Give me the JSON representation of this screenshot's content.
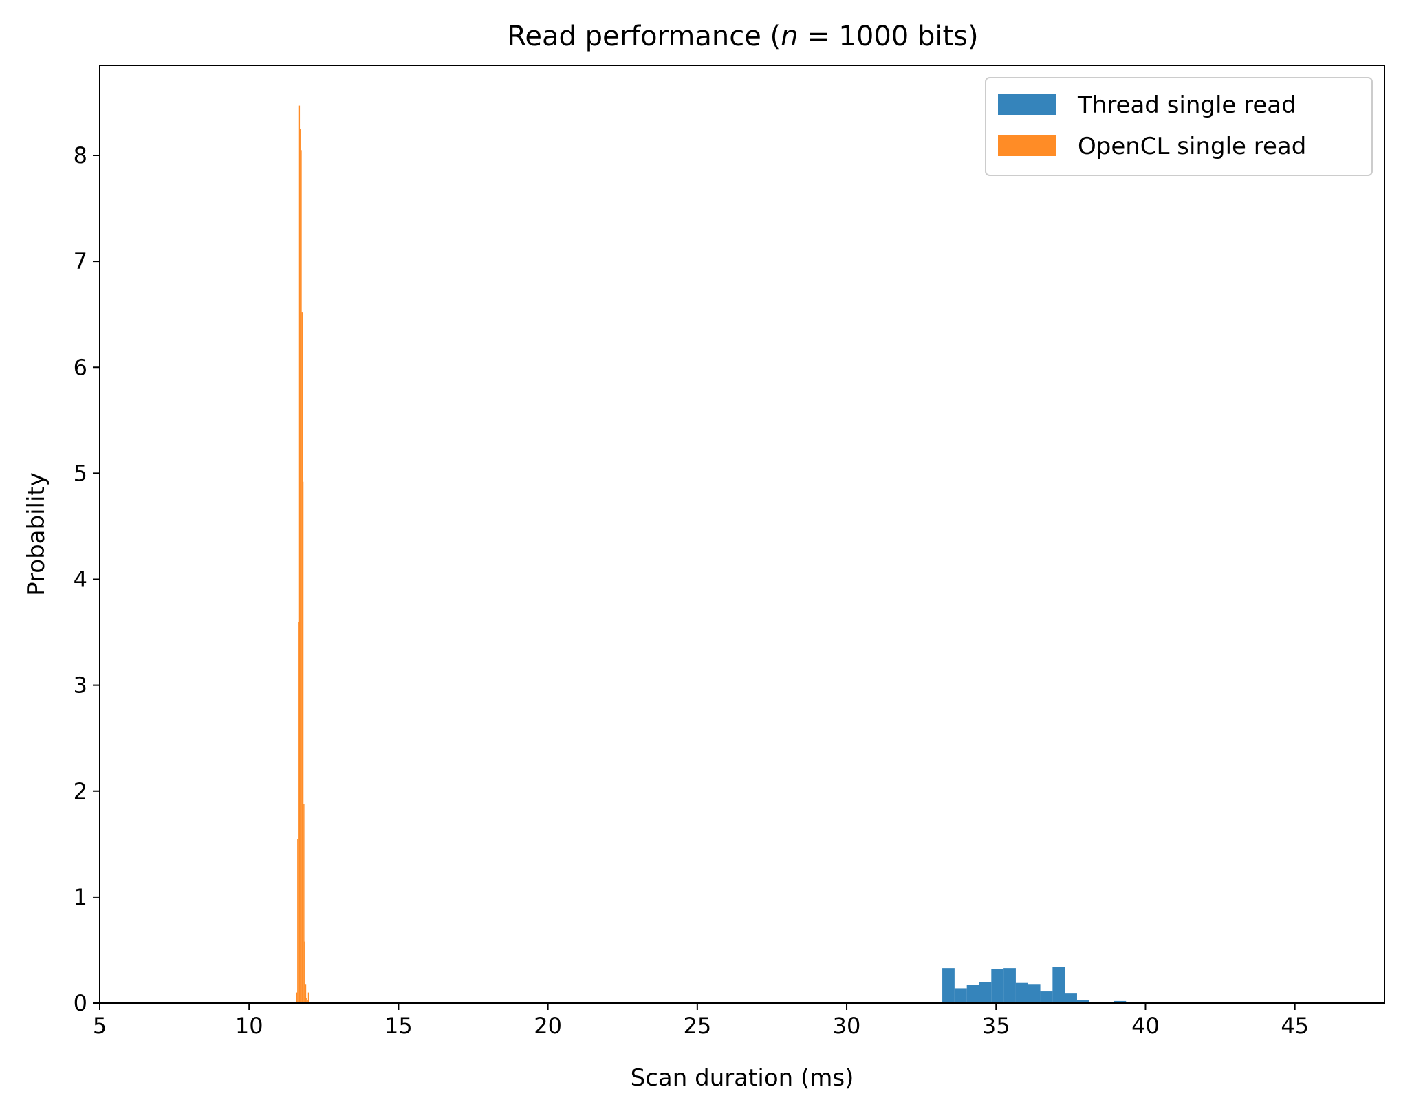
{
  "chart_data": {
    "type": "bar",
    "title": "Read performance (n = 1000 bits)",
    "xlabel": "Scan duration (ms)",
    "ylabel": "Probability",
    "xlim": [
      5,
      48
    ],
    "ylim": [
      0,
      8.85
    ],
    "xticks": [
      5,
      10,
      15,
      20,
      25,
      30,
      35,
      40,
      45
    ],
    "yticks": [
      0,
      1,
      2,
      3,
      4,
      5,
      6,
      7,
      8
    ],
    "grid": false,
    "legend_position": "top-right",
    "series": [
      {
        "name": "Thread single read",
        "color": "#1f77b4",
        "bin_width": 0.41,
        "bins": [
          {
            "x": 33.2,
            "y": 0.33
          },
          {
            "x": 33.61,
            "y": 0.14
          },
          {
            "x": 34.02,
            "y": 0.17
          },
          {
            "x": 34.43,
            "y": 0.2
          },
          {
            "x": 34.84,
            "y": 0.32
          },
          {
            "x": 35.25,
            "y": 0.33
          },
          {
            "x": 35.66,
            "y": 0.19
          },
          {
            "x": 36.07,
            "y": 0.18
          },
          {
            "x": 36.48,
            "y": 0.11
          },
          {
            "x": 36.89,
            "y": 0.34
          },
          {
            "x": 37.3,
            "y": 0.09
          },
          {
            "x": 37.71,
            "y": 0.03
          },
          {
            "x": 38.12,
            "y": 0.01
          },
          {
            "x": 38.53,
            "y": 0.01
          },
          {
            "x": 38.94,
            "y": 0.02
          }
        ]
      },
      {
        "name": "OpenCL single read",
        "color": "#ff7f0e",
        "bin_width": 0.03,
        "bins": [
          {
            "x": 11.58,
            "y": 0.1
          },
          {
            "x": 11.61,
            "y": 1.55
          },
          {
            "x": 11.64,
            "y": 3.6
          },
          {
            "x": 11.67,
            "y": 8.47
          },
          {
            "x": 11.7,
            "y": 8.25
          },
          {
            "x": 11.73,
            "y": 8.05
          },
          {
            "x": 11.76,
            "y": 6.52
          },
          {
            "x": 11.79,
            "y": 4.92
          },
          {
            "x": 11.82,
            "y": 1.88
          },
          {
            "x": 11.85,
            "y": 0.58
          },
          {
            "x": 11.88,
            "y": 0.18
          },
          {
            "x": 11.91,
            "y": 0.05
          },
          {
            "x": 11.94,
            "y": 0.03
          },
          {
            "x": 11.97,
            "y": 0.1
          }
        ]
      }
    ]
  }
}
